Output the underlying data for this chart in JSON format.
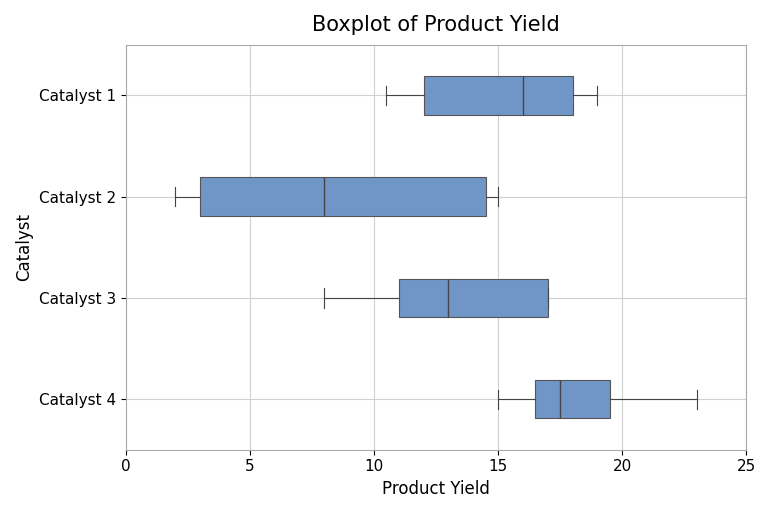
{
  "title": "Boxplot of Product Yield",
  "xlabel": "Product Yield",
  "ylabel": "Catalyst",
  "categories": [
    "Catalyst 1",
    "Catalyst 2",
    "Catalyst 3",
    "Catalyst 4"
  ],
  "box_stats": [
    {
      "label": "Catalyst 1",
      "whislo": 10.5,
      "q1": 12.0,
      "med": 16.0,
      "q3": 18.0,
      "whishi": 19.0
    },
    {
      "label": "Catalyst 2",
      "whislo": 2.0,
      "q1": 3.0,
      "med": 8.0,
      "q3": 14.5,
      "whishi": 15.0
    },
    {
      "label": "Catalyst 3",
      "whislo": 8.0,
      "q1": 11.0,
      "med": 13.0,
      "q3": 17.0,
      "whishi": 17.0
    },
    {
      "label": "Catalyst 4",
      "whislo": 15.0,
      "q1": 16.5,
      "med": 17.5,
      "q3": 19.5,
      "whishi": 23.0
    }
  ],
  "xlim": [
    0,
    25
  ],
  "xticks": [
    0,
    5,
    10,
    15,
    20,
    25
  ],
  "box_facecolor": "#7096c8",
  "box_edgecolor": "#555555",
  "median_color": "#444444",
  "whisker_color": "#444444",
  "cap_color": "#444444",
  "background_color": "#ffffff",
  "grid_color": "#d0d0d0",
  "title_fontsize": 15,
  "label_fontsize": 12,
  "tick_fontsize": 11,
  "box_width": 0.38
}
